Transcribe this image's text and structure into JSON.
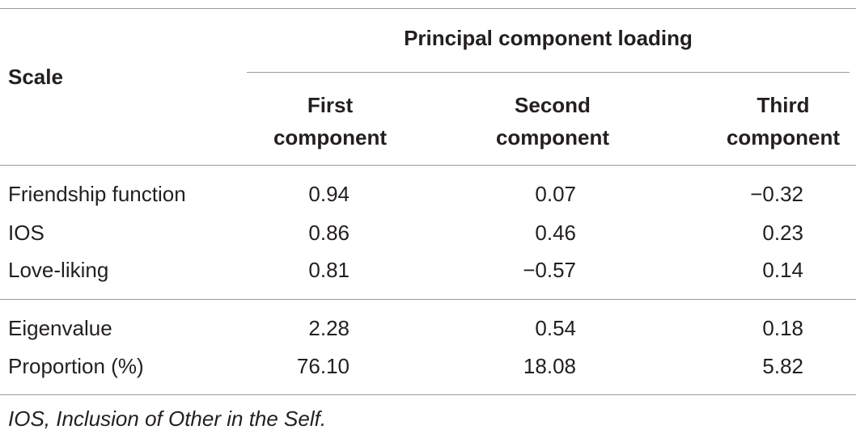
{
  "table": {
    "header": {
      "group": "Principal component loading",
      "scale": "Scale",
      "columns": [
        [
          "First",
          "component"
        ],
        [
          "Second",
          "component"
        ],
        [
          "Third",
          "component"
        ]
      ]
    },
    "rows": [
      [
        "Friendship function",
        "0.94",
        "0.07",
        "−0.32"
      ],
      [
        "IOS",
        "0.86",
        "0.46",
        "0.23"
      ],
      [
        "Love-liking",
        "0.81",
        "−0.57",
        "0.14"
      ]
    ],
    "summary_rows": [
      [
        "Eigenvalue",
        "2.28",
        "0.54",
        "0.18"
      ],
      [
        "Proportion (%)",
        "76.10",
        "18.08",
        "5.82"
      ]
    ],
    "footnote": "IOS, Inclusion of Other in the Self."
  }
}
